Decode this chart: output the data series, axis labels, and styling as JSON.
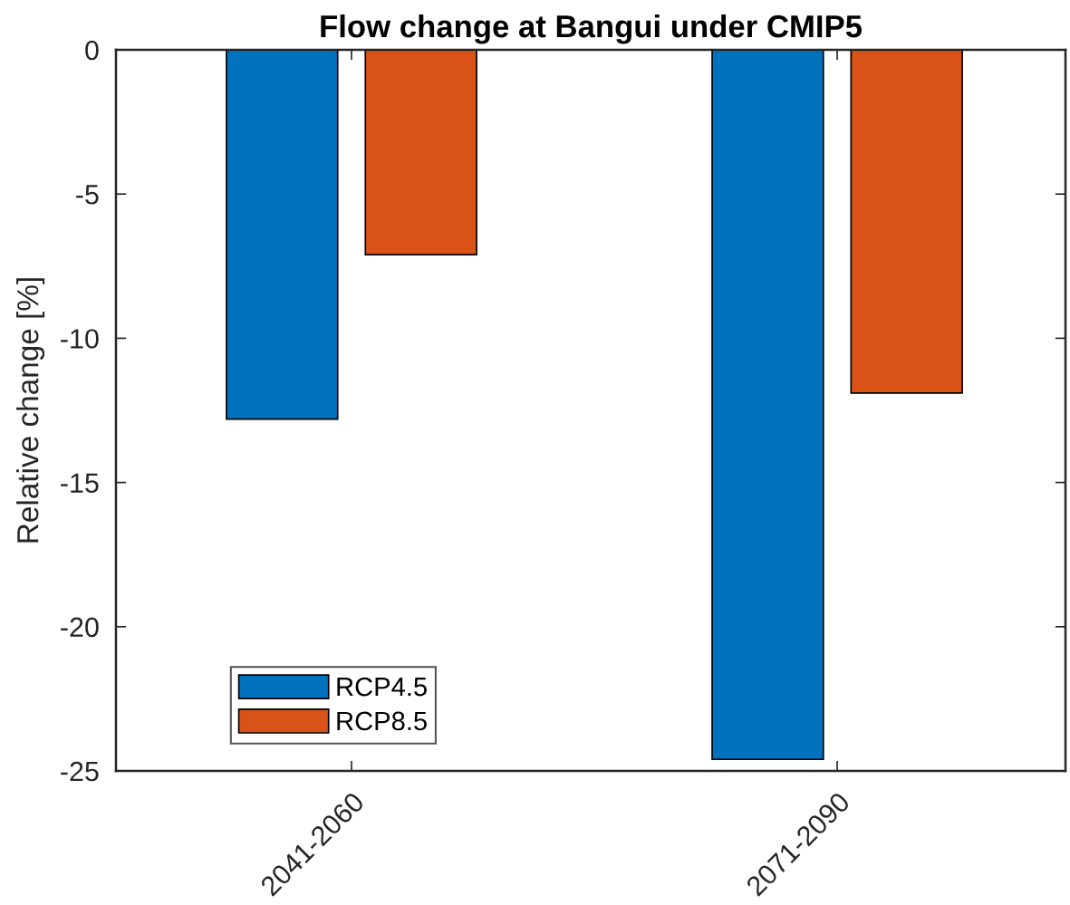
{
  "chart_data": {
    "type": "bar",
    "title": "Flow change at Bangui under CMIP5",
    "ylabel": "Relative change [%]",
    "categories": [
      "2041-2060",
      "2071-2090"
    ],
    "series": [
      {
        "name": "RCP4.5",
        "color": "#0072bd",
        "values": [
          -12.8,
          -24.6
        ]
      },
      {
        "name": "RCP8.5",
        "color": "#d95319",
        "values": [
          -7.1,
          -11.9
        ]
      }
    ],
    "ylim": [
      -25,
      0
    ],
    "yticks": [
      -25,
      -20,
      -15,
      -10,
      -5,
      0
    ],
    "grid": false,
    "legend": "bottom left"
  }
}
